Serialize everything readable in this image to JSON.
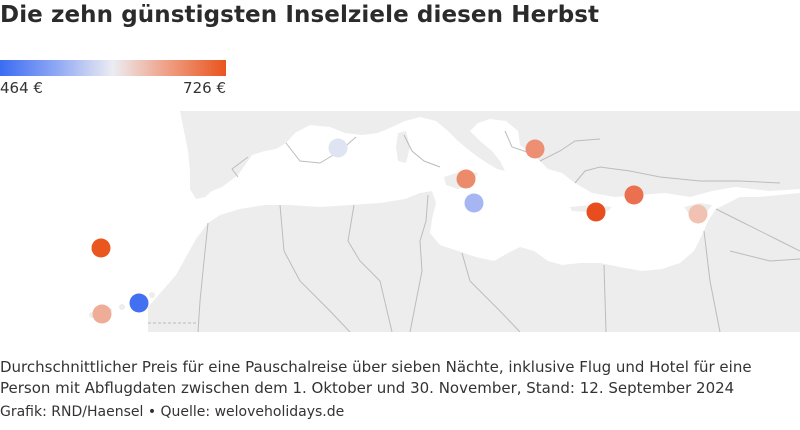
{
  "title": "Die zehn günstigsten Inselziele diesen Herbst",
  "legend": {
    "min_label": "464 €",
    "max_label": "726 €",
    "min_value": 464,
    "max_value": 726,
    "colors": [
      "#3b6cf2",
      "#8fa8f4",
      "#ececf2",
      "#ef9c80",
      "#e9541e"
    ]
  },
  "map": {
    "region": "Mittelmeerraum und Kanarische Inseln",
    "land_color": "#ededed",
    "sea_color": "#ffffff",
    "border_color": "#b9b9b9",
    "markers": [
      {
        "price_level": 0.57,
        "color": "#dfe4f3"
      },
      {
        "price_level": 0.85,
        "color": "#ec8a6c"
      },
      {
        "price_level": 0.35,
        "color": "#a5b6f2"
      },
      {
        "price_level": 0.83,
        "color": "#ec8f73"
      },
      {
        "price_level": 1.0,
        "color": "#e74d1d"
      },
      {
        "price_level": 0.9,
        "color": "#ea7050"
      },
      {
        "price_level": 0.72,
        "color": "#f1c2b2"
      },
      {
        "price_level": 0.97,
        "color": "#e9571f"
      },
      {
        "price_level": 0.0,
        "color": "#4270f1"
      },
      {
        "price_level": 0.78,
        "color": "#efad98"
      }
    ]
  },
  "description": "Durchschnittlicher Preis für eine Pauschalreise über sieben Nächte, inklusive Flug und Hotel für eine Person mit Abflugdaten zwischen dem 1. Oktober und 30. November, Stand: 12. September 2024",
  "credit": "Grafik: RND/Haensel • Quelle: weloveholidays.de"
}
